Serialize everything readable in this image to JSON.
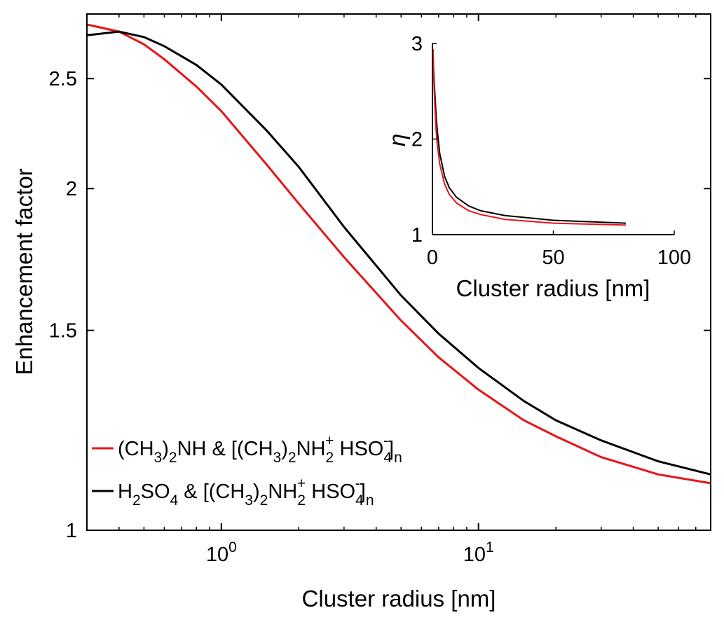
{
  "chart_data": [
    {
      "type": "line",
      "xscale": "log",
      "yscale": "log",
      "xlabel": "Cluster radius [nm]",
      "ylabel": "Enhancement factor",
      "xlim": [
        0.3,
        80
      ],
      "ylim": [
        1.0,
        2.85
      ],
      "xticks": [
        {
          "value": 1,
          "base": "10",
          "exp": "0"
        },
        {
          "value": 10,
          "base": "10",
          "exp": "1"
        }
      ],
      "yticks": [
        {
          "value": 1,
          "label": "1"
        },
        {
          "value": 1.5,
          "label": "1.5"
        },
        {
          "value": 2,
          "label": "2"
        },
        {
          "value": 2.5,
          "label": "2.5"
        }
      ],
      "grid": false,
      "legend_position": "bottom-left",
      "series": [
        {
          "color": "#e8141a",
          "legend": [
            {
              "t": "(CH"
            },
            {
              "t": "3",
              "s": "sub"
            },
            {
              "t": ")"
            },
            {
              "t": "2",
              "s": "sub"
            },
            {
              "t": "NH & [(CH"
            },
            {
              "t": "3",
              "s": "sub"
            },
            {
              "t": ")"
            },
            {
              "t": "2",
              "s": "sub"
            },
            {
              "t": "NH"
            },
            {
              "t": "2",
              "s": "sub"
            },
            {
              "t": "+",
              "s": "sup"
            },
            {
              "t": " HSO"
            },
            {
              "t": "4",
              "s": "sub"
            },
            {
              "t": "-",
              "s": "sup"
            },
            {
              "t": "]"
            },
            {
              "t": "n",
              "s": "sub"
            }
          ],
          "x": [
            0.3,
            0.4,
            0.5,
            0.6,
            0.8,
            1.0,
            1.5,
            2,
            3,
            5,
            7,
            10,
            15,
            20,
            30,
            50,
            80
          ],
          "y": [
            2.79,
            2.75,
            2.68,
            2.6,
            2.46,
            2.34,
            2.1,
            1.94,
            1.74,
            1.53,
            1.42,
            1.33,
            1.25,
            1.21,
            1.16,
            1.12,
            1.1
          ]
        },
        {
          "color": "#000000",
          "legend": [
            {
              "t": "H"
            },
            {
              "t": "2",
              "s": "sub"
            },
            {
              "t": "SO"
            },
            {
              "t": "4",
              "s": "sub"
            },
            {
              "t": " & [(CH"
            },
            {
              "t": "3",
              "s": "sub"
            },
            {
              "t": ")"
            },
            {
              "t": "2",
              "s": "sub"
            },
            {
              "t": "NH"
            },
            {
              "t": "2",
              "s": "sub"
            },
            {
              "t": "+",
              "s": "sup"
            },
            {
              "t": " HSO"
            },
            {
              "t": "4",
              "s": "sub"
            },
            {
              "t": "-",
              "s": "sup"
            },
            {
              "t": "]"
            },
            {
              "t": "n",
              "s": "sub"
            }
          ],
          "x": [
            0.3,
            0.4,
            0.5,
            0.6,
            0.8,
            1.0,
            1.5,
            2,
            3,
            5,
            7,
            10,
            15,
            20,
            30,
            50,
            80
          ],
          "y": [
            2.73,
            2.75,
            2.72,
            2.67,
            2.57,
            2.47,
            2.25,
            2.09,
            1.85,
            1.61,
            1.49,
            1.39,
            1.3,
            1.25,
            1.2,
            1.15,
            1.12
          ]
        }
      ]
    },
    {
      "type": "line",
      "xscale": "linear",
      "yscale": "linear",
      "xlabel": "Cluster radius [nm]",
      "ylabel": "η",
      "xlim": [
        0,
        100
      ],
      "ylim": [
        1,
        3
      ],
      "xticks": [
        {
          "value": 0,
          "label": "0"
        },
        {
          "value": 50,
          "label": "50"
        },
        {
          "value": 100,
          "label": "100"
        }
      ],
      "yticks": [
        {
          "value": 1,
          "label": "1"
        },
        {
          "value": 2,
          "label": "2"
        },
        {
          "value": 3,
          "label": "3"
        }
      ],
      "grid": false,
      "series": [
        {
          "color": "#000000",
          "x": [
            0.3,
            0.5,
            1,
            1.5,
            2,
            3,
            5,
            7,
            10,
            15,
            20,
            30,
            50,
            80
          ],
          "y": [
            2.87,
            2.72,
            2.47,
            2.25,
            2.09,
            1.85,
            1.61,
            1.49,
            1.39,
            1.3,
            1.25,
            1.2,
            1.15,
            1.12
          ]
        },
        {
          "color": "#e8141a",
          "x": [
            0.3,
            0.5,
            1,
            1.5,
            2,
            3,
            5,
            7,
            10,
            15,
            20,
            30,
            50,
            80
          ],
          "y": [
            2.94,
            2.68,
            2.34,
            2.1,
            1.94,
            1.74,
            1.53,
            1.42,
            1.33,
            1.25,
            1.21,
            1.16,
            1.12,
            1.1
          ]
        }
      ]
    }
  ]
}
